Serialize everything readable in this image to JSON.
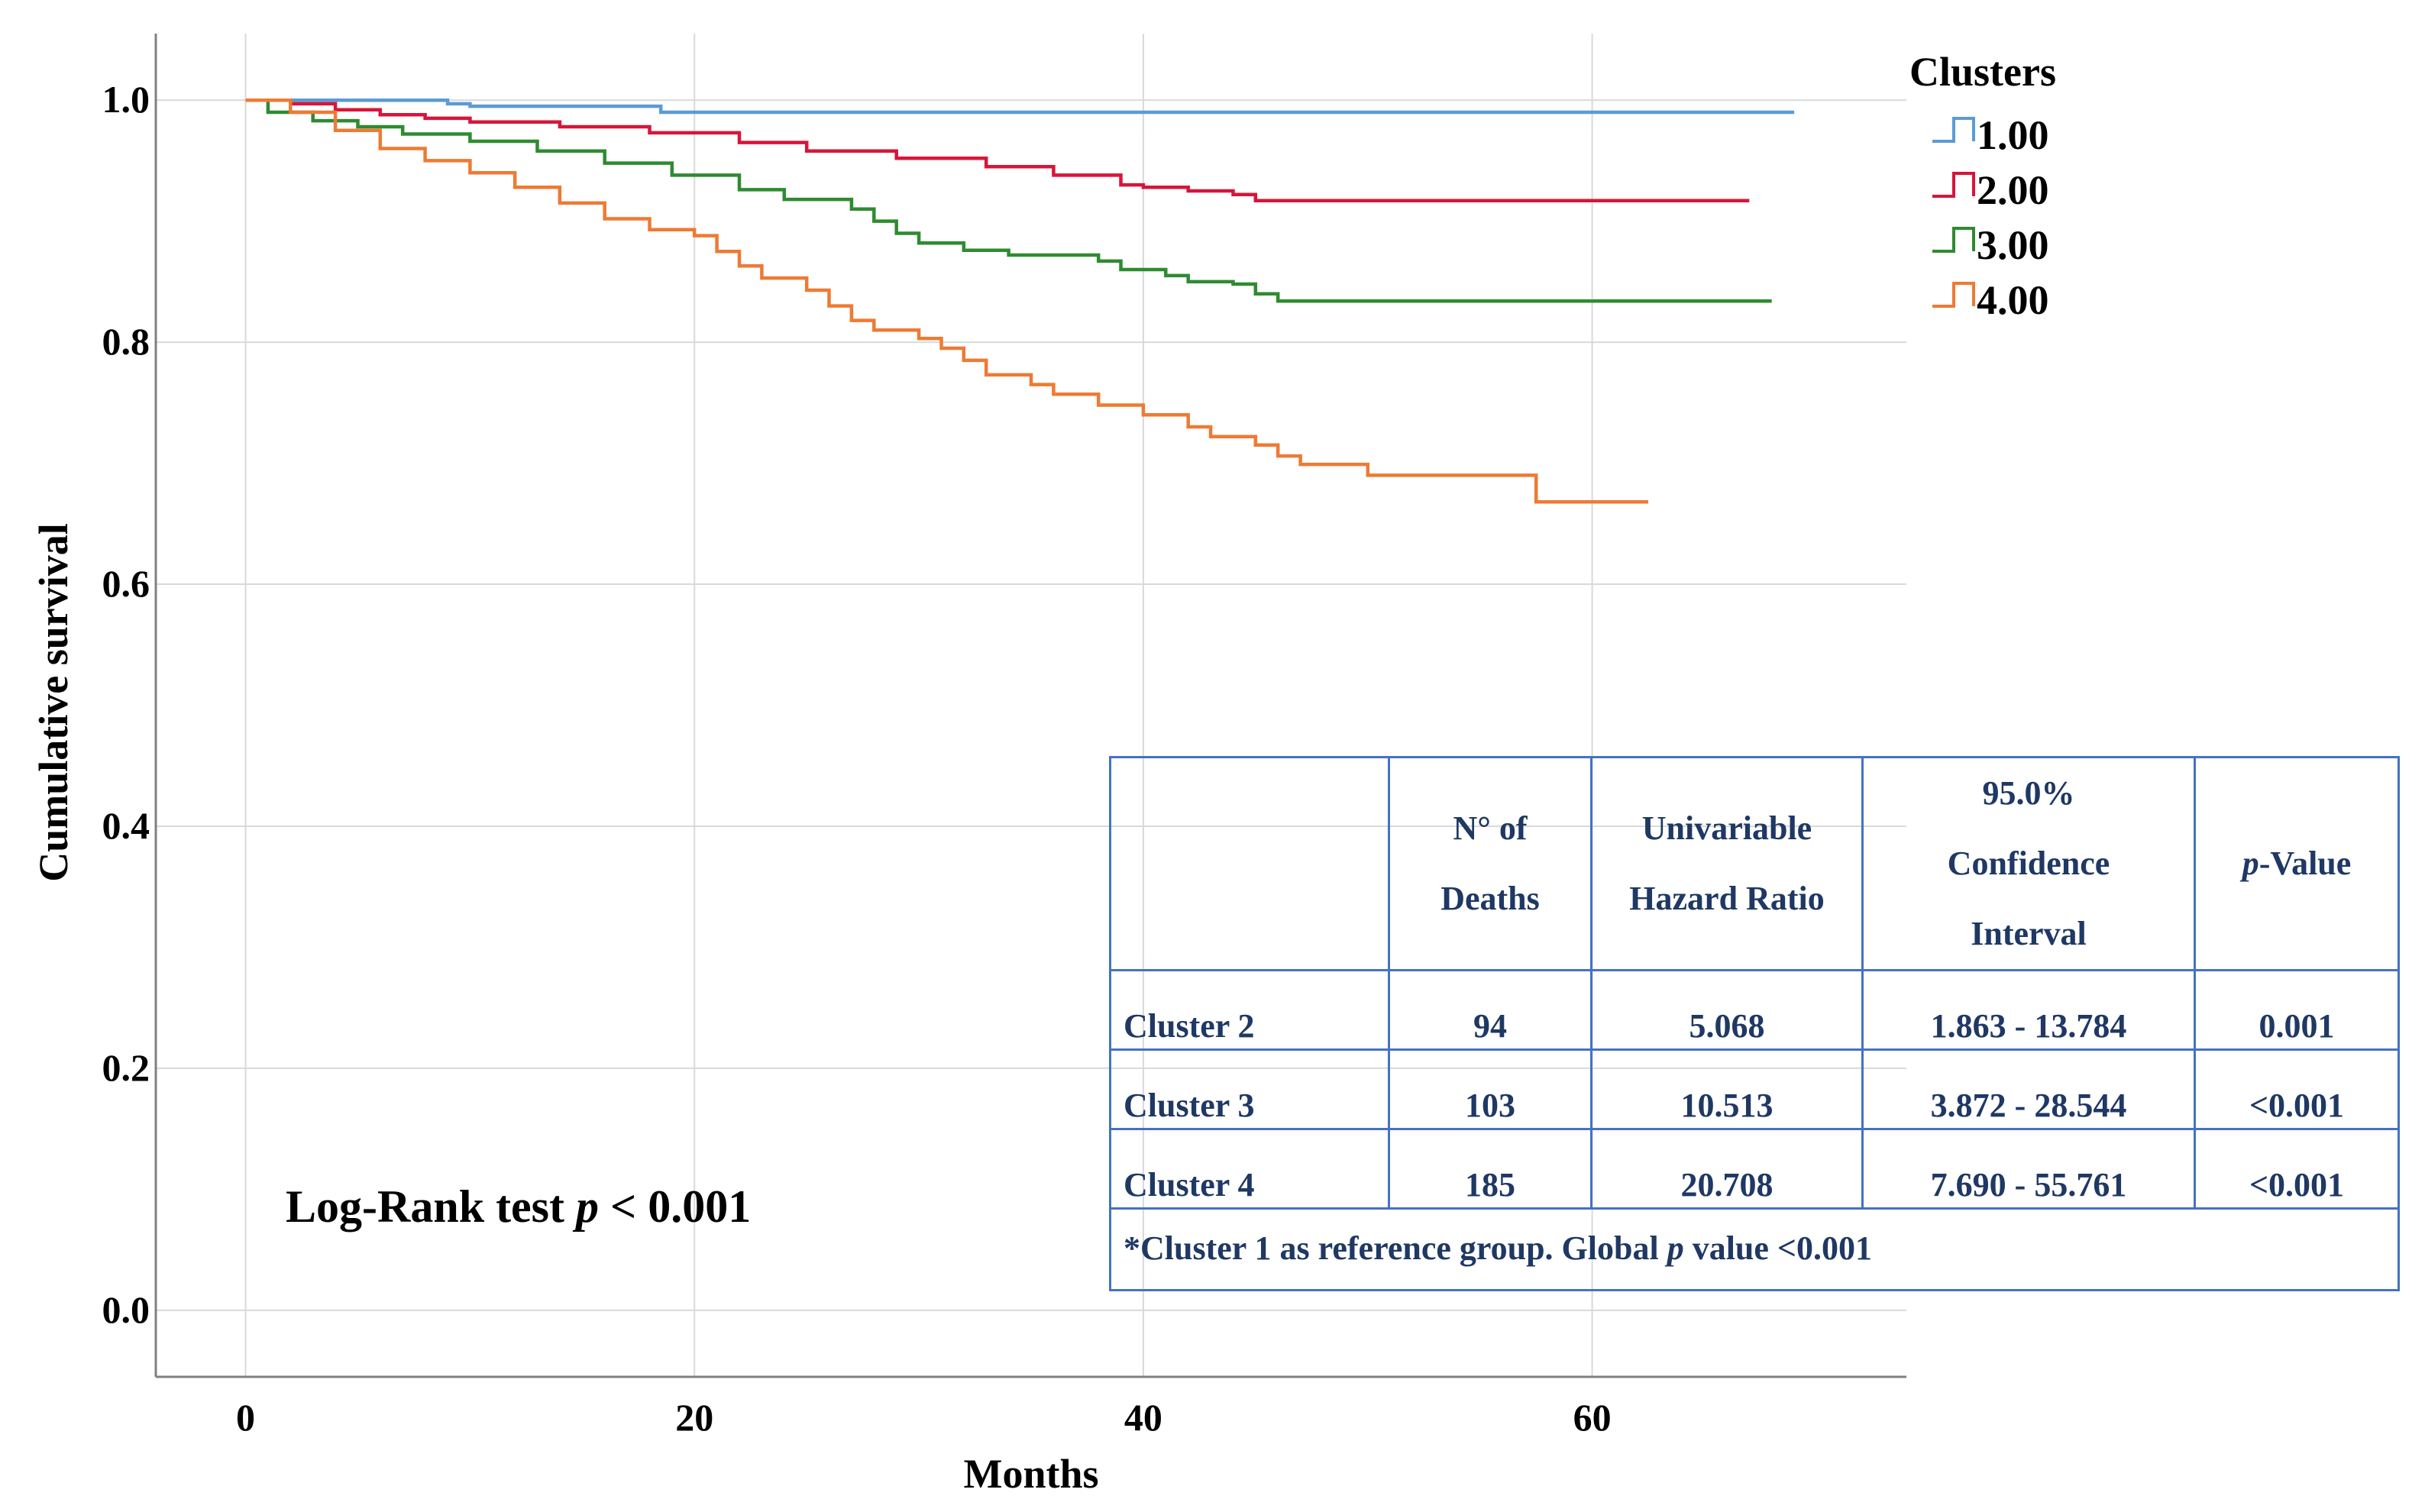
{
  "chart_data": {
    "type": "line",
    "title": "",
    "xlabel": "Months",
    "ylabel": "Cumulative survival",
    "xlim": [
      -4,
      74
    ],
    "ylim": [
      -0.055,
      1.055
    ],
    "xticks": [
      0,
      20,
      40,
      60
    ],
    "yticks": [
      0.0,
      0.2,
      0.4,
      0.6,
      0.8,
      1.0
    ],
    "xtick_labels": [
      "0",
      "20",
      "40",
      "60"
    ],
    "ytick_labels": [
      "0.0",
      "0.2",
      "0.4",
      "0.6",
      "0.8",
      "1.0"
    ],
    "grid": true,
    "legend_title": "Clusters",
    "legend_position": "top-right",
    "series": [
      {
        "name": "1.00",
        "color": "#5b9bd5",
        "points": [
          [
            0,
            1.0
          ],
          [
            9,
            0.997
          ],
          [
            10,
            0.995
          ],
          [
            18.5,
            0.993
          ],
          [
            18.5,
            0.99
          ],
          [
            69,
            0.99
          ]
        ]
      },
      {
        "name": "2.00",
        "color": "#d7153a",
        "points": [
          [
            0,
            1.0
          ],
          [
            2,
            0.997
          ],
          [
            4,
            0.992
          ],
          [
            6,
            0.988
          ],
          [
            8,
            0.985
          ],
          [
            10,
            0.982
          ],
          [
            14,
            0.978
          ],
          [
            18,
            0.973
          ],
          [
            22,
            0.965
          ],
          [
            25,
            0.958
          ],
          [
            29,
            0.952
          ],
          [
            33,
            0.945
          ],
          [
            36,
            0.938
          ],
          [
            39,
            0.93
          ],
          [
            40,
            0.928
          ],
          [
            42,
            0.925
          ],
          [
            44,
            0.922
          ],
          [
            45,
            0.917
          ],
          [
            50,
            0.917
          ],
          [
            67,
            0.917
          ]
        ]
      },
      {
        "name": "3.00",
        "color": "#2e8b30",
        "points": [
          [
            0,
            1.0
          ],
          [
            1,
            0.99
          ],
          [
            3,
            0.983
          ],
          [
            5,
            0.978
          ],
          [
            7,
            0.972
          ],
          [
            10,
            0.966
          ],
          [
            13,
            0.958
          ],
          [
            16,
            0.948
          ],
          [
            19,
            0.938
          ],
          [
            22,
            0.926
          ],
          [
            24,
            0.918
          ],
          [
            27,
            0.91
          ],
          [
            28,
            0.9
          ],
          [
            29,
            0.89
          ],
          [
            30,
            0.882
          ],
          [
            32,
            0.876
          ],
          [
            34,
            0.872
          ],
          [
            38,
            0.867
          ],
          [
            39,
            0.86
          ],
          [
            41,
            0.855
          ],
          [
            42,
            0.85
          ],
          [
            44,
            0.848
          ],
          [
            45,
            0.84
          ],
          [
            46,
            0.834
          ],
          [
            55,
            0.834
          ],
          [
            68,
            0.834
          ]
        ]
      },
      {
        "name": "4.00",
        "color": "#ee7a34",
        "points": [
          [
            0,
            1.0
          ],
          [
            2,
            0.99
          ],
          [
            4,
            0.975
          ],
          [
            6,
            0.96
          ],
          [
            8,
            0.95
          ],
          [
            10,
            0.94
          ],
          [
            12,
            0.928
          ],
          [
            14,
            0.915
          ],
          [
            16,
            0.902
          ],
          [
            18,
            0.893
          ],
          [
            20,
            0.888
          ],
          [
            21,
            0.875
          ],
          [
            22,
            0.863
          ],
          [
            23,
            0.853
          ],
          [
            25,
            0.843
          ],
          [
            26,
            0.83
          ],
          [
            27,
            0.818
          ],
          [
            28,
            0.81
          ],
          [
            30,
            0.803
          ],
          [
            31,
            0.795
          ],
          [
            32,
            0.785
          ],
          [
            33,
            0.773
          ],
          [
            35,
            0.765
          ],
          [
            36,
            0.757
          ],
          [
            38,
            0.748
          ],
          [
            40,
            0.74
          ],
          [
            42,
            0.73
          ],
          [
            43,
            0.722
          ],
          [
            45,
            0.715
          ],
          [
            46,
            0.706
          ],
          [
            47,
            0.699
          ],
          [
            50,
            0.69
          ],
          [
            55,
            0.69
          ],
          [
            57.5,
            0.69
          ],
          [
            57.5,
            0.668
          ],
          [
            62.5,
            0.668
          ]
        ]
      }
    ],
    "annotations": [
      {
        "id": "logrank",
        "prefix": "Log-Rank test ",
        "italic": "p",
        "suffix": " < 0.001"
      }
    ]
  },
  "table": {
    "headers": {
      "col0": "",
      "col1a": "N° of",
      "col1b": "Deaths",
      "col2a": "Univariable",
      "col2b": "Hazard Ratio",
      "col3a": "95.0%",
      "col3b": "Confidence",
      "col3c": "Interval",
      "col4_italic": "p",
      "col4_rest": "-Value"
    },
    "rows": [
      {
        "label": "Cluster 2",
        "deaths": "94",
        "hr": "5.068",
        "ci": "1.863 - 13.784",
        "p": "0.001"
      },
      {
        "label": "Cluster 3",
        "deaths": "103",
        "hr": "10.513",
        "ci": "3.872 - 28.544",
        "p": "<0.001"
      },
      {
        "label": "Cluster 4",
        "deaths": "185",
        "hr": "20.708",
        "ci": "7.690 - 55.761",
        "p": "<0.001"
      }
    ],
    "footnote_a": "*Cluster 1 as reference group. Global ",
    "footnote_italic": "p",
    "footnote_b": " value <0.001"
  }
}
